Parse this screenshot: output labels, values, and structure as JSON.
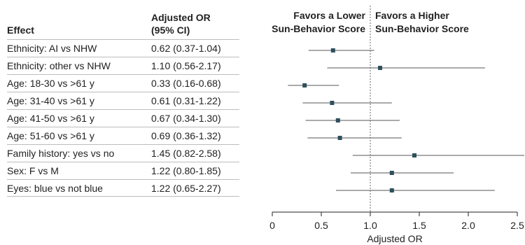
{
  "table": {
    "effect_header": "Effect",
    "or_header_line1": "Adjusted OR",
    "or_header_line2": "(95% CI)",
    "rows": [
      {
        "effect": "Ethnicity: AI vs NHW",
        "estimate": "0.62 (0.37-1.04)"
      },
      {
        "effect": "Ethnicity: other vs NHW",
        "estimate": "1.10 (0.56-2.17)"
      },
      {
        "effect": "Age: 18-30 vs >61 y",
        "estimate": "0.33 (0.16-0.68)"
      },
      {
        "effect": "Age: 31-40 vs >61 y",
        "estimate": "0.61 (0.31-1.22)"
      },
      {
        "effect": "Age: 41-50 vs >61 y",
        "estimate": "0.67 (0.34-1.30)"
      },
      {
        "effect": "Age: 51-60 vs >61 y",
        "estimate": "0.69 (0.36-1.32)"
      },
      {
        "effect": "Family history: yes vs no",
        "estimate": "1.45 (0.82-2.58)"
      },
      {
        "effect": "Sex: F vs M",
        "estimate": "1.22 (0.80-1.85)"
      },
      {
        "effect": "Eyes: blue vs not blue",
        "estimate": "1.22 (0.65-2.27)"
      }
    ]
  },
  "chart_data": {
    "type": "forest",
    "xlabel": "Adjusted OR",
    "xlim": [
      0,
      2.5
    ],
    "xticks": [
      0,
      0.5,
      1.0,
      1.5,
      2.0,
      2.5
    ],
    "xtick_labels": [
      "0",
      "0.5",
      "1.0",
      "1.5",
      "2.0",
      "2.5"
    ],
    "reference_line": 1.0,
    "left_header": [
      "Favors a Lower",
      "Sun-Behavior Score"
    ],
    "right_header": [
      "Favors a Higher",
      "Sun-Behavior Score"
    ],
    "points": [
      {
        "label": "Ethnicity: AI vs NHW",
        "or": 0.62,
        "lo": 0.37,
        "hi": 1.04
      },
      {
        "label": "Ethnicity: other vs NHW",
        "or": 1.1,
        "lo": 0.56,
        "hi": 2.17
      },
      {
        "label": "Age: 18-30 vs >61 y",
        "or": 0.33,
        "lo": 0.16,
        "hi": 0.68
      },
      {
        "label": "Age: 31-40 vs >61 y",
        "or": 0.61,
        "lo": 0.31,
        "hi": 1.22
      },
      {
        "label": "Age: 41-50 vs >61 y",
        "or": 0.67,
        "lo": 0.34,
        "hi": 1.3
      },
      {
        "label": "Age: 51-60 vs >61 y",
        "or": 0.69,
        "lo": 0.36,
        "hi": 1.32
      },
      {
        "label": "Family history: yes vs no",
        "or": 1.45,
        "lo": 0.82,
        "hi": 2.58
      },
      {
        "label": "Sex: F vs M",
        "or": 1.22,
        "lo": 0.8,
        "hi": 1.85
      },
      {
        "label": "Eyes: blue vs not blue",
        "or": 1.22,
        "lo": 0.65,
        "hi": 2.27
      }
    ],
    "colors": {
      "marker": "#2e4f5c",
      "ci_line": "#555555",
      "axis": "#222222",
      "reference": "#666666"
    }
  }
}
